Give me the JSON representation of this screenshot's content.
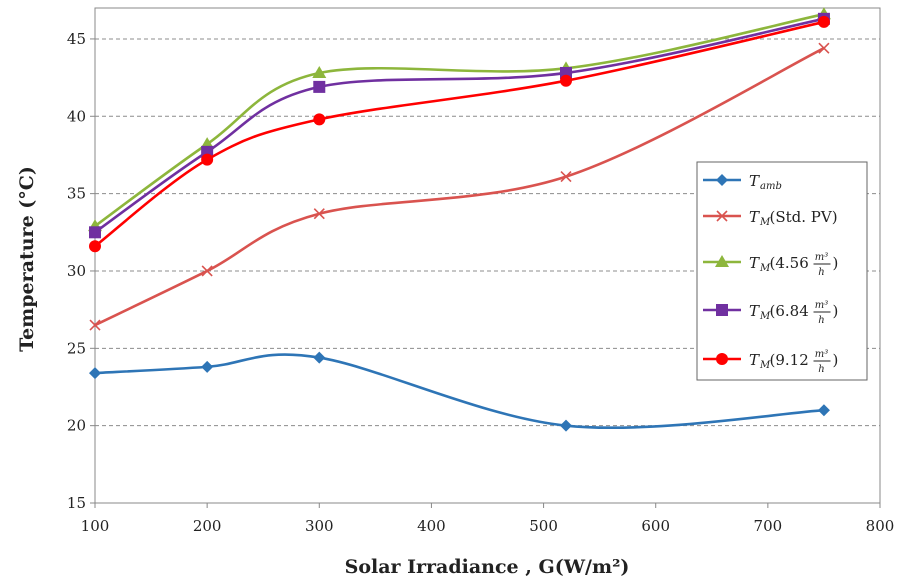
{
  "chart_data": {
    "type": "line",
    "xlabel": "Solar Irradiance , G(W/m²)",
    "ylabel": "Temperature (°C)",
    "xlim": [
      100,
      800
    ],
    "ylim": [
      15,
      47
    ],
    "x_ticks": [
      "100",
      "200",
      "300",
      "400",
      "500",
      "600",
      "700",
      "800"
    ],
    "y_ticks": [
      "15",
      "20",
      "25",
      "30",
      "35",
      "40",
      "45"
    ],
    "grid": "horizontal dashed",
    "legend_position": "right",
    "x": [
      100,
      200,
      300,
      520,
      750
    ],
    "series": [
      {
        "name": "Tamb",
        "name_main": "T",
        "name_sub": "amb",
        "name_suffix": "",
        "color": "#2E75B6",
        "marker": "diamond",
        "values": [
          23.4,
          23.8,
          24.4,
          20.0,
          21.0
        ]
      },
      {
        "name": "TM (Std. PV)",
        "name_main": "T",
        "name_sub": "M",
        "name_suffix": "(Std. PV)",
        "color": "#D9534F",
        "marker": "x",
        "values": [
          26.5,
          30.0,
          33.7,
          36.1,
          44.4
        ]
      },
      {
        "name": "TM (4.56 m³/h)",
        "name_main": "T",
        "name_sub": "M",
        "name_suffix": "(4.56",
        "name_num": "m³",
        "name_den": "h",
        "color": "#8DB63C",
        "marker": "triangle",
        "values": [
          32.9,
          38.2,
          42.8,
          43.1,
          46.6
        ]
      },
      {
        "name": "TM (6.84 m³/h)",
        "name_main": "T",
        "name_sub": "M",
        "name_suffix": "(6.84",
        "name_num": "m³",
        "name_den": "h",
        "color": "#7030A0",
        "marker": "square",
        "values": [
          32.5,
          37.7,
          41.9,
          42.8,
          46.3
        ]
      },
      {
        "name": "TM (9.12 m³/h)",
        "name_main": "T",
        "name_sub": "M",
        "name_suffix": "(9.12",
        "name_num": "m³",
        "name_den": "h",
        "color": "#FF0000",
        "marker": "circle",
        "values": [
          31.6,
          37.2,
          39.8,
          42.3,
          46.1
        ]
      }
    ]
  }
}
